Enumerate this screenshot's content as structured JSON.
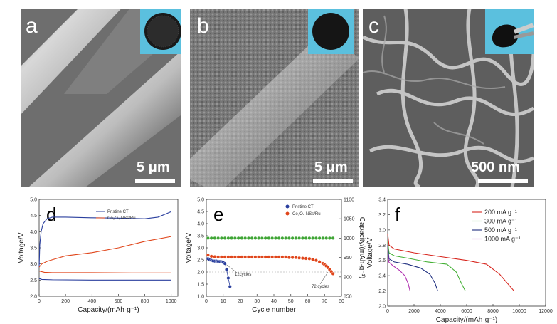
{
  "panels_sem": [
    {
      "label": "a",
      "scale": "5 μm"
    },
    {
      "label": "b",
      "scale": "5 μm"
    },
    {
      "label": "c",
      "scale": "500 nm"
    }
  ],
  "chart_data": [
    {
      "panel": "d",
      "type": "line",
      "xlabel": "Capacity/(mAh·g⁻¹)",
      "ylabel": "Voltage/V",
      "xlim": [
        0,
        1050
      ],
      "ylim": [
        2.0,
        5.0
      ],
      "xticks": [
        "0",
        "200",
        "400",
        "600",
        "800",
        "1000"
      ],
      "yticks": [
        "2.0",
        "2.5",
        "3.0",
        "3.5",
        "4.0",
        "4.5",
        "5.0"
      ],
      "legend": [
        "Pristine CT",
        "Co₃O₄ NSs/Ru"
      ],
      "colors": [
        "#2a3f9e",
        "#e0451a"
      ],
      "series": [
        {
          "name": "Pristine CT",
          "x": [
            0,
            5,
            15,
            30,
            60,
            100,
            200,
            400,
            600,
            800,
            900,
            1000
          ],
          "y": [
            2.9,
            3.6,
            4.0,
            4.25,
            4.4,
            4.45,
            4.45,
            4.43,
            4.42,
            4.4,
            4.45,
            4.62
          ]
        },
        {
          "name": "Pristine CT",
          "x": [
            0,
            20,
            100,
            400,
            700,
            1000
          ],
          "y": [
            2.55,
            2.52,
            2.51,
            2.5,
            2.5,
            2.5
          ]
        },
        {
          "name": "Co₃O₄ NSs/Ru",
          "x": [
            0,
            20,
            60,
            100,
            200,
            400,
            600,
            800,
            1000
          ],
          "y": [
            2.9,
            3.0,
            3.08,
            3.13,
            3.25,
            3.35,
            3.5,
            3.7,
            3.85
          ]
        },
        {
          "name": "Co₃O₄ NSs/Ru",
          "x": [
            0,
            40,
            100,
            400,
            700,
            1000
          ],
          "y": [
            2.78,
            2.74,
            2.73,
            2.73,
            2.72,
            2.72
          ]
        }
      ]
    },
    {
      "panel": "e",
      "type": "scatter",
      "xlabel": "Cycle number",
      "ylabel": "Voltage/V",
      "y2label": "Capacity/(mAh·g⁻¹)",
      "xlim": [
        0,
        80
      ],
      "ylim": [
        1.0,
        5.0
      ],
      "y2lim": [
        850,
        1100
      ],
      "xticks": [
        "0",
        "10",
        "20",
        "30",
        "40",
        "50",
        "60",
        "70",
        "80"
      ],
      "yticks": [
        "1.0",
        "1.5",
        "2.0",
        "2.5",
        "3.0",
        "3.5",
        "4.0",
        "4.5",
        "5.0"
      ],
      "y2ticks": [
        "850",
        "900",
        "950",
        "1000",
        "1050",
        "1100"
      ],
      "legend": [
        "Pristine CT",
        "Co₃O₄ NSs/Ru"
      ],
      "annotations": [
        "12cycles",
        "72 cycles"
      ],
      "series": [
        {
          "name": "Pristine CT",
          "color": "#2a3f9e",
          "x": [
            1,
            2,
            3,
            4,
            5,
            6,
            7,
            8,
            9,
            10,
            11,
            12,
            13,
            14
          ],
          "y": [
            2.55,
            2.5,
            2.48,
            2.46,
            2.45,
            2.45,
            2.44,
            2.43,
            2.42,
            2.4,
            2.35,
            2.1,
            1.75,
            1.4
          ]
        },
        {
          "name": "Co₃O₄ NSs/Ru",
          "color": "#e0451a",
          "x": [
            1,
            3,
            5,
            7,
            9,
            11,
            13,
            15,
            17,
            19,
            21,
            23,
            25,
            27,
            29,
            31,
            33,
            35,
            37,
            39,
            41,
            43,
            45,
            47,
            49,
            51,
            53,
            55,
            57,
            59,
            61,
            63,
            65,
            67,
            69,
            70,
            71,
            72,
            73,
            74,
            75
          ],
          "y": [
            2.7,
            2.65,
            2.63,
            2.62,
            2.62,
            2.62,
            2.62,
            2.62,
            2.62,
            2.62,
            2.62,
            2.62,
            2.62,
            2.62,
            2.62,
            2.62,
            2.62,
            2.62,
            2.62,
            2.62,
            2.62,
            2.62,
            2.62,
            2.62,
            2.6,
            2.6,
            2.6,
            2.58,
            2.57,
            2.56,
            2.55,
            2.52,
            2.48,
            2.42,
            2.35,
            2.3,
            2.25,
            2.18,
            2.1,
            2.02,
            1.93
          ]
        },
        {
          "name": "Capacity",
          "color": "#3fa535",
          "axis": "y2",
          "x": [
            1,
            3,
            5,
            7,
            9,
            11,
            13,
            15,
            17,
            19,
            21,
            23,
            25,
            27,
            29,
            31,
            33,
            35,
            37,
            39,
            41,
            43,
            45,
            47,
            49,
            51,
            53,
            55,
            57,
            59,
            61,
            63,
            65,
            67,
            69,
            71,
            73,
            75
          ],
          "y": [
            1000,
            1000,
            1000,
            1000,
            1000,
            1000,
            1000,
            1000,
            1000,
            1000,
            1000,
            1000,
            1000,
            1000,
            1000,
            1000,
            1000,
            1000,
            1000,
            1000,
            1000,
            1000,
            1000,
            1000,
            1000,
            1000,
            1000,
            1000,
            1000,
            1000,
            1000,
            1000,
            1000,
            1000,
            1000,
            1000,
            1000,
            1000
          ]
        }
      ]
    },
    {
      "panel": "f",
      "type": "line",
      "xlabel": "Capacity/(mAh·g⁻¹)",
      "ylabel": "Voltage/V",
      "xlim": [
        0,
        12000
      ],
      "ylim": [
        2.0,
        3.4
      ],
      "xticks": [
        "0",
        "2000",
        "4000",
        "6000",
        "8000",
        "10000",
        "12000"
      ],
      "yticks": [
        "2.0",
        "2.2",
        "2.4",
        "2.6",
        "2.8",
        "3.0",
        "3.2",
        "3.4"
      ],
      "legend": [
        "200 mA g⁻¹",
        "300 mA g⁻¹",
        "500 mA g⁻¹",
        "1000 mA g⁻¹"
      ],
      "series": [
        {
          "name": "200 mA g⁻¹",
          "color": "#d7261e",
          "x": [
            0,
            100,
            500,
            2000,
            4000,
            6000,
            7500,
            8500,
            9000,
            9600
          ],
          "y": [
            2.95,
            2.8,
            2.75,
            2.7,
            2.65,
            2.6,
            2.55,
            2.42,
            2.32,
            2.2
          ]
        },
        {
          "name": "300 mA g⁻¹",
          "color": "#44b035",
          "x": [
            0,
            100,
            500,
            1500,
            3000,
            4500,
            5200,
            5600,
            5900
          ],
          "y": [
            2.85,
            2.7,
            2.66,
            2.63,
            2.58,
            2.55,
            2.45,
            2.3,
            2.2
          ]
        },
        {
          "name": "500 mA g⁻¹",
          "color": "#1f2f7f",
          "x": [
            0,
            100,
            500,
            1500,
            2500,
            3200,
            3600,
            3800
          ],
          "y": [
            2.8,
            2.62,
            2.58,
            2.55,
            2.5,
            2.42,
            2.3,
            2.2
          ]
        },
        {
          "name": "1000 mA g⁻¹",
          "color": "#b02fb0",
          "x": [
            0,
            80,
            400,
            900,
            1300,
            1550,
            1700
          ],
          "y": [
            2.75,
            2.58,
            2.53,
            2.47,
            2.4,
            2.3,
            2.2
          ]
        }
      ]
    }
  ]
}
